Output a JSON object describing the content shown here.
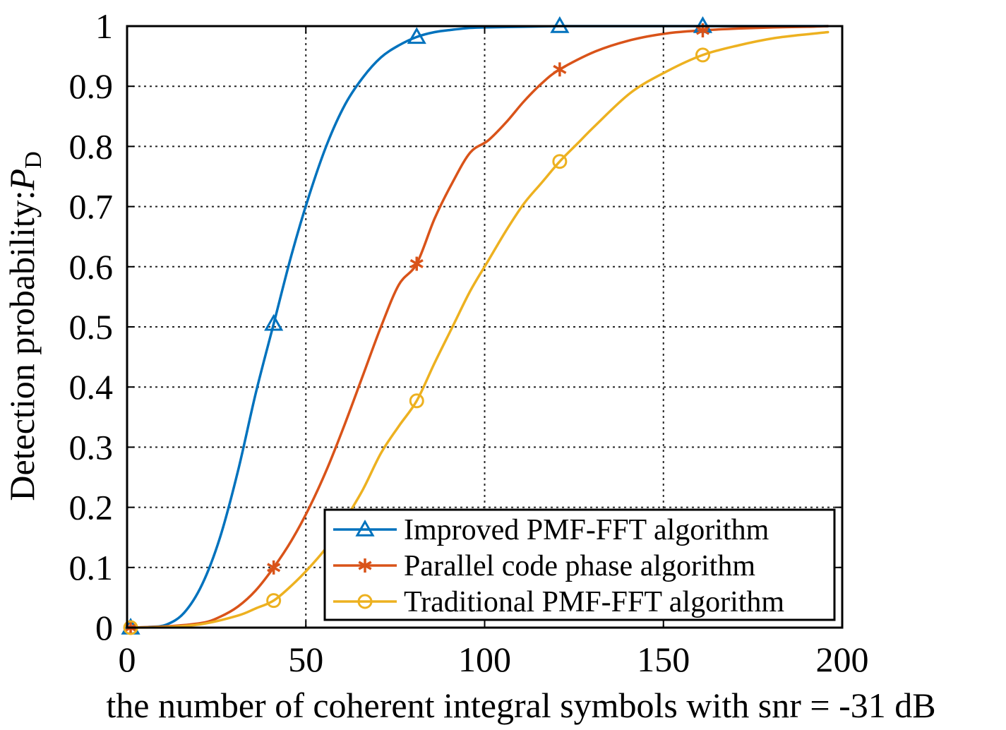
{
  "chart_data": {
    "type": "line",
    "title": "",
    "xlabel": "the number of coherent integral symbols with snr = -31 dB",
    "ylabel_main": "Detection probability:",
    "ylabel_symbol": "P",
    "ylabel_subscript": "D",
    "xlim": [
      0,
      200
    ],
    "ylim": [
      0,
      1
    ],
    "xticks": [
      0,
      50,
      100,
      150,
      200
    ],
    "xtick_labels": [
      "0",
      "50",
      "100",
      "150",
      "200"
    ],
    "yticks": [
      0,
      0.1,
      0.2,
      0.3,
      0.4,
      0.5,
      0.6,
      0.7,
      0.8,
      0.9,
      1
    ],
    "ytick_labels": [
      "0",
      "0.1",
      "0.2",
      "0.3",
      "0.4",
      "0.5",
      "0.6",
      "0.7",
      "0.8",
      "0.9",
      "1"
    ],
    "grid": true,
    "legend_position": "bottom-right",
    "series": [
      {
        "name": "Improved PMF-FFT algorithm",
        "color": "#0072BD",
        "marker": "triangle",
        "x": [
          1,
          6,
          11,
          16,
          21,
          26,
          31,
          36,
          41,
          46,
          51,
          56,
          61,
          66,
          71,
          76,
          81,
          86,
          91,
          96,
          101,
          111,
          121,
          131,
          141,
          151,
          161,
          171,
          181,
          191,
          196
        ],
        "y": [
          0,
          0.001,
          0.005,
          0.025,
          0.072,
          0.15,
          0.26,
          0.39,
          0.505,
          0.62,
          0.72,
          0.805,
          0.87,
          0.915,
          0.948,
          0.968,
          0.982,
          0.99,
          0.994,
          0.997,
          0.998,
          0.999,
          1,
          1,
          1,
          1,
          1,
          1,
          1,
          1,
          1
        ],
        "marker_x": [
          1,
          41,
          81,
          121,
          161
        ],
        "marker_y": [
          0,
          0.505,
          0.982,
          1,
          1
        ]
      },
      {
        "name": "Parallel code phase algorithm",
        "color": "#D95319",
        "marker": "asterisk",
        "x": [
          1,
          11,
          21,
          26,
          31,
          36,
          41,
          46,
          51,
          56,
          61,
          66,
          71,
          76,
          81,
          86,
          91,
          96,
          101,
          106,
          111,
          116,
          121,
          131,
          141,
          151,
          161,
          171,
          181,
          191,
          196
        ],
        "y": [
          0,
          0.002,
          0.008,
          0.018,
          0.035,
          0.062,
          0.1,
          0.145,
          0.2,
          0.265,
          0.34,
          0.42,
          0.5,
          0.57,
          0.605,
          0.68,
          0.74,
          0.79,
          0.81,
          0.84,
          0.875,
          0.905,
          0.928,
          0.958,
          0.977,
          0.988,
          0.993,
          0.996,
          0.998,
          0.999,
          1
        ],
        "marker_x": [
          1,
          41,
          81,
          121,
          161
        ],
        "marker_y": [
          0,
          0.1,
          0.605,
          0.928,
          0.993
        ]
      },
      {
        "name": "Traditional PMF-FFT algorithm",
        "color": "#EDB120",
        "marker": "circle",
        "x": [
          1,
          11,
          21,
          31,
          36,
          41,
          46,
          51,
          56,
          61,
          66,
          71,
          76,
          81,
          86,
          91,
          96,
          101,
          106,
          111,
          116,
          121,
          126,
          131,
          141,
          151,
          161,
          171,
          181,
          191,
          196
        ],
        "y": [
          0,
          0.001,
          0.006,
          0.02,
          0.032,
          0.045,
          0.07,
          0.1,
          0.135,
          0.18,
          0.23,
          0.29,
          0.335,
          0.377,
          0.44,
          0.5,
          0.56,
          0.61,
          0.66,
          0.705,
          0.74,
          0.775,
          0.805,
          0.835,
          0.89,
          0.925,
          0.952,
          0.968,
          0.98,
          0.987,
          0.99
        ],
        "marker_x": [
          1,
          41,
          81,
          121,
          161
        ],
        "marker_y": [
          0,
          0.045,
          0.377,
          0.775,
          0.952
        ]
      }
    ]
  }
}
